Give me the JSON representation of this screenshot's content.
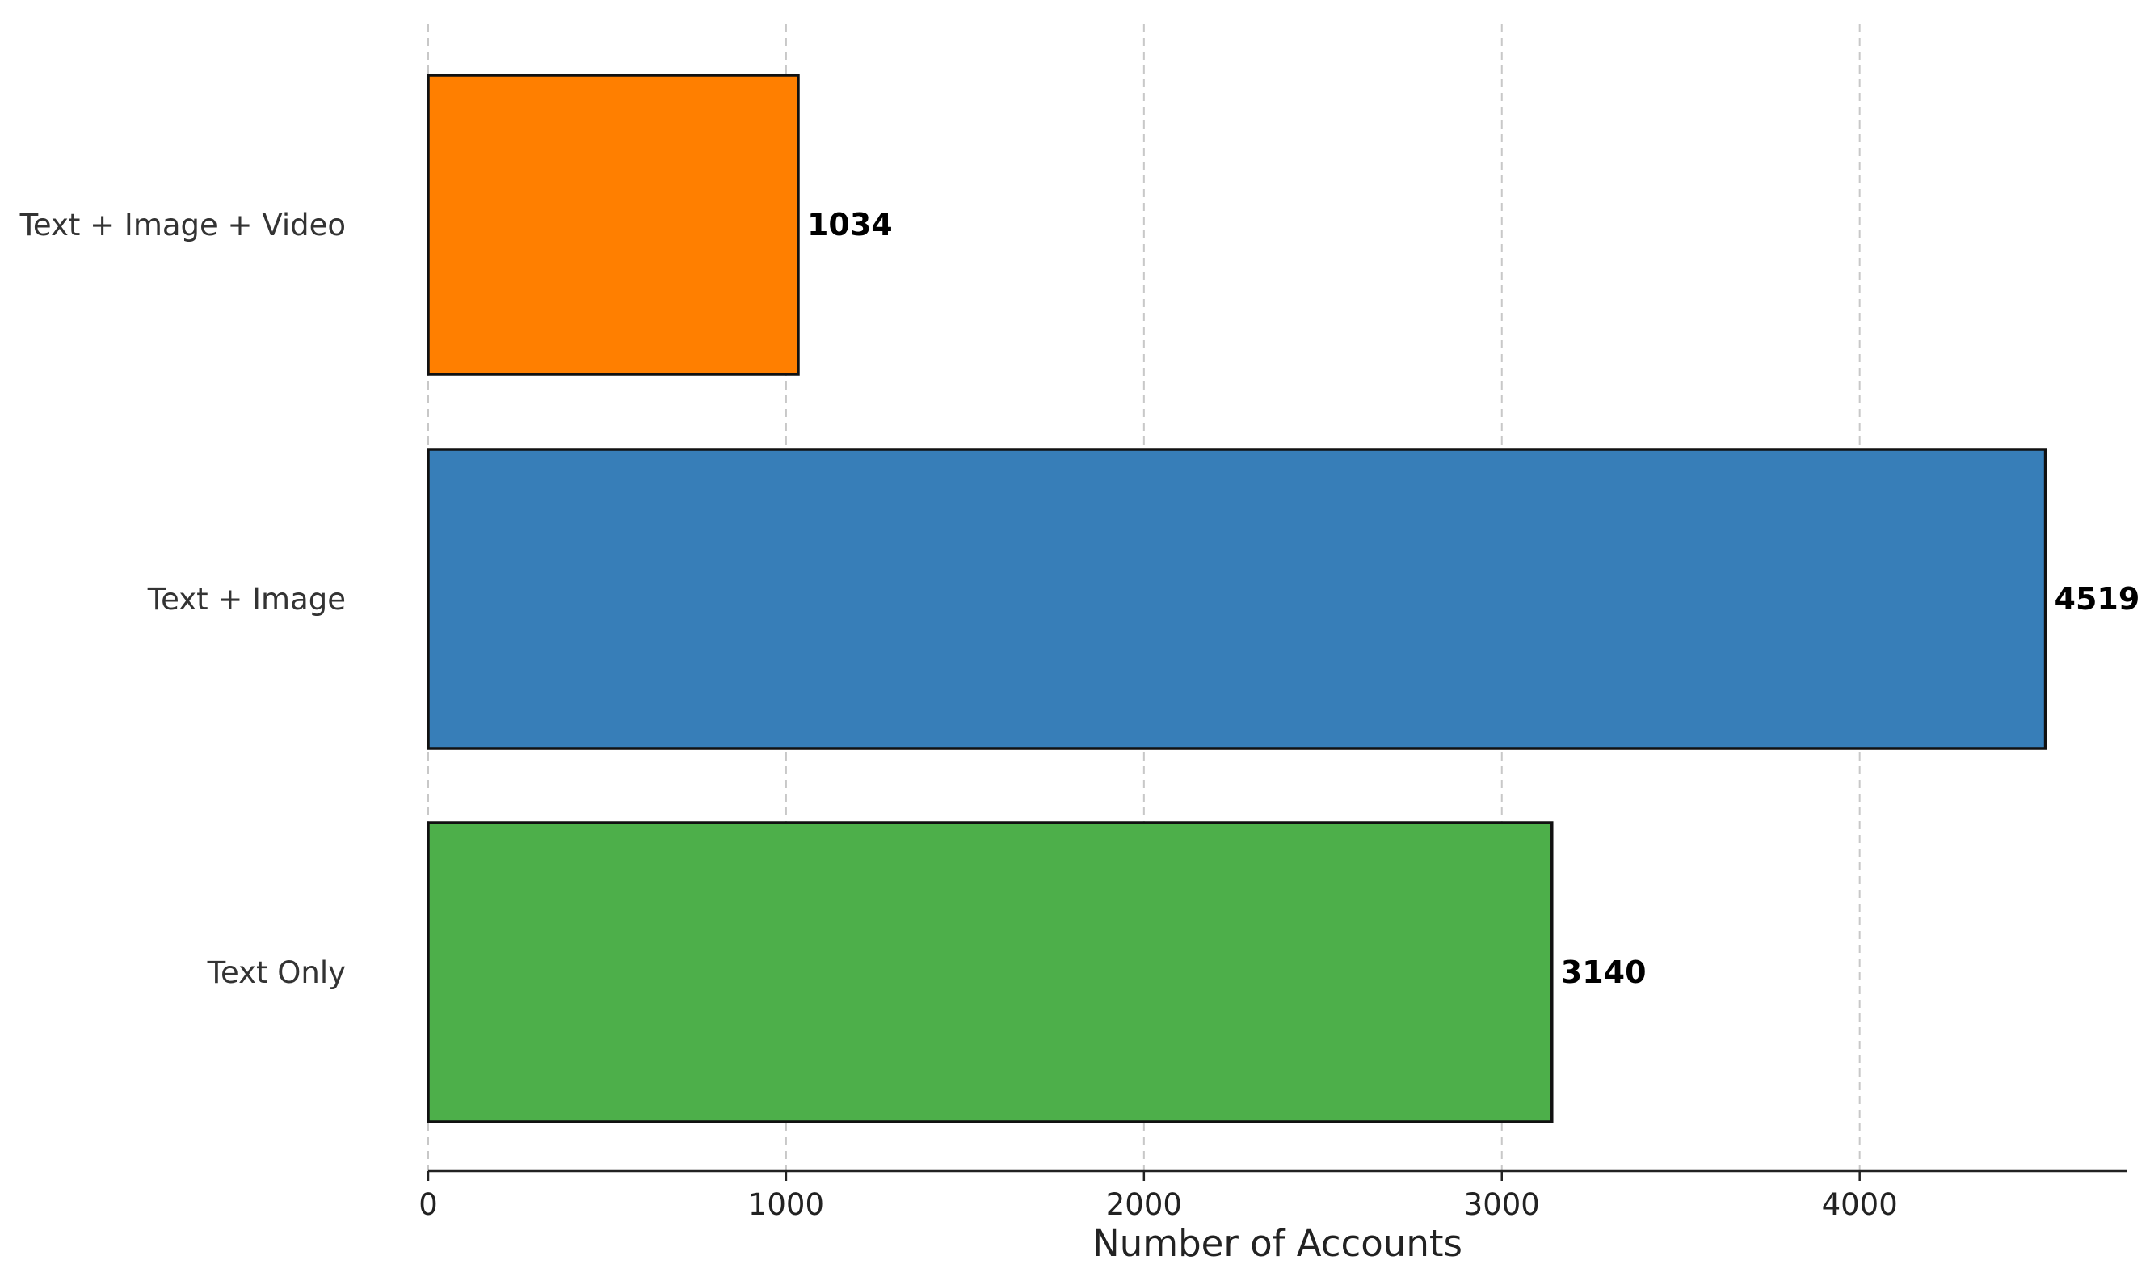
{
  "chart_data": {
    "type": "bar",
    "orientation": "horizontal",
    "title": "",
    "xlabel": "Number of Accounts",
    "ylabel": "",
    "categories": [
      "Text + Image + Video",
      "Text + Image",
      "Text Only"
    ],
    "values": [
      1034,
      4519,
      3140
    ],
    "colors": [
      "#ff7f00",
      "#377eb8",
      "#4daf4a"
    ],
    "xlim": [
      0,
      4750
    ],
    "xticks": [
      0,
      1000,
      2000,
      3000,
      4000
    ],
    "grid": true,
    "grid_axis": "x",
    "legend": "none"
  }
}
